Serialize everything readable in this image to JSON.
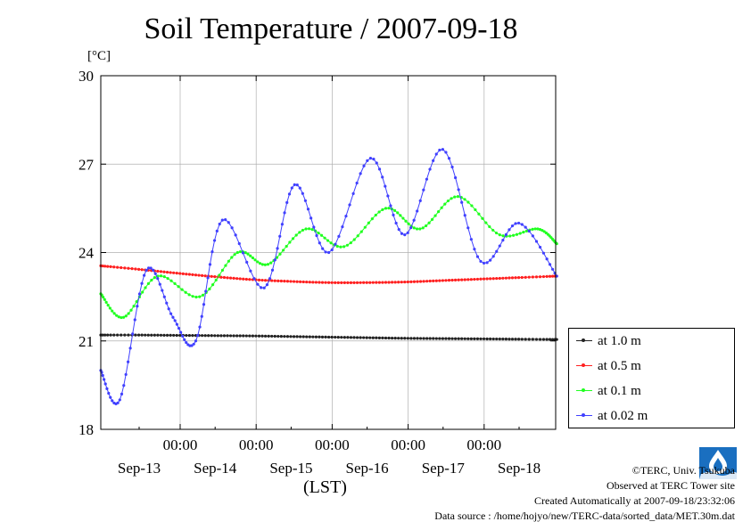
{
  "title": "Soil Temperature / 2007-09-18",
  "chart_data": {
    "type": "line",
    "title": "Soil Temperature / 2007-09-18",
    "ylabel": "[°C]",
    "xlabel": "(LST)",
    "ylim": [
      18,
      30
    ],
    "yticks": [
      18,
      21,
      24,
      27,
      30
    ],
    "xlim_days": [
      0,
      6
    ],
    "xtick_time_label": "00:00",
    "xtick_day_labels": [
      "Sep-13",
      "Sep-14",
      "Sep-15",
      "Sep-16",
      "Sep-17",
      "Sep-18"
    ],
    "grid": true,
    "legend_position": "right-bottom",
    "series": [
      {
        "name": "at 1.0 m",
        "color": "#222222",
        "x": [
          0,
          0.5,
          1,
          1.5,
          2,
          2.5,
          3,
          3.5,
          4,
          4.5,
          5,
          5.5,
          6
        ],
        "y": [
          21.2,
          21.2,
          21.19,
          21.18,
          21.17,
          21.15,
          21.13,
          21.11,
          21.09,
          21.08,
          21.07,
          21.06,
          21.05
        ]
      },
      {
        "name": "at 0.5 m",
        "color": "#ff2020",
        "x": [
          0,
          0.5,
          1,
          1.5,
          2,
          2.5,
          3,
          3.5,
          4,
          4.5,
          5,
          5.5,
          6
        ],
        "y": [
          23.55,
          23.43,
          23.3,
          23.18,
          23.08,
          23.02,
          22.98,
          22.98,
          23.0,
          23.05,
          23.1,
          23.15,
          23.2
        ]
      },
      {
        "name": "at 0.1 m",
        "color": "#20ff20",
        "x": [
          0,
          0.3,
          0.75,
          1.3,
          1.8,
          2.2,
          2.7,
          3.2,
          3.75,
          4.2,
          4.7,
          5.25,
          5.75,
          6
        ],
        "y": [
          22.6,
          21.8,
          23.2,
          22.5,
          24.0,
          23.6,
          24.8,
          24.2,
          25.5,
          24.8,
          25.9,
          24.6,
          24.8,
          24.3
        ]
      },
      {
        "name": "at 0.02 m",
        "color": "#4040ff",
        "x": [
          0,
          0.25,
          0.6,
          0.95,
          1.25,
          1.6,
          2.15,
          2.55,
          3.0,
          3.55,
          4.0,
          4.5,
          5.0,
          5.5,
          6
        ],
        "y": [
          20.0,
          19.0,
          23.4,
          21.8,
          21.0,
          25.1,
          22.8,
          26.3,
          24.0,
          27.2,
          24.6,
          27.5,
          23.7,
          25.0,
          23.2
        ]
      }
    ]
  },
  "legend": [
    {
      "label": "at 1.0 m",
      "color": "#222222"
    },
    {
      "label": "at 0.5 m",
      "color": "#ff2020"
    },
    {
      "label": "at 0.1 m",
      "color": "#20ff20"
    },
    {
      "label": "at 0.02 m",
      "color": "#4040ff"
    }
  ],
  "credits": {
    "copyright": "©TERC, Univ. Tsukuba",
    "observed": "Observed at TERC Tower site",
    "created": "Created Automatically at 2007-09-18/23:32:06",
    "source": "Data source : /home/hojyo/new/TERC-data/sorted_data/MET.30m.dat"
  }
}
